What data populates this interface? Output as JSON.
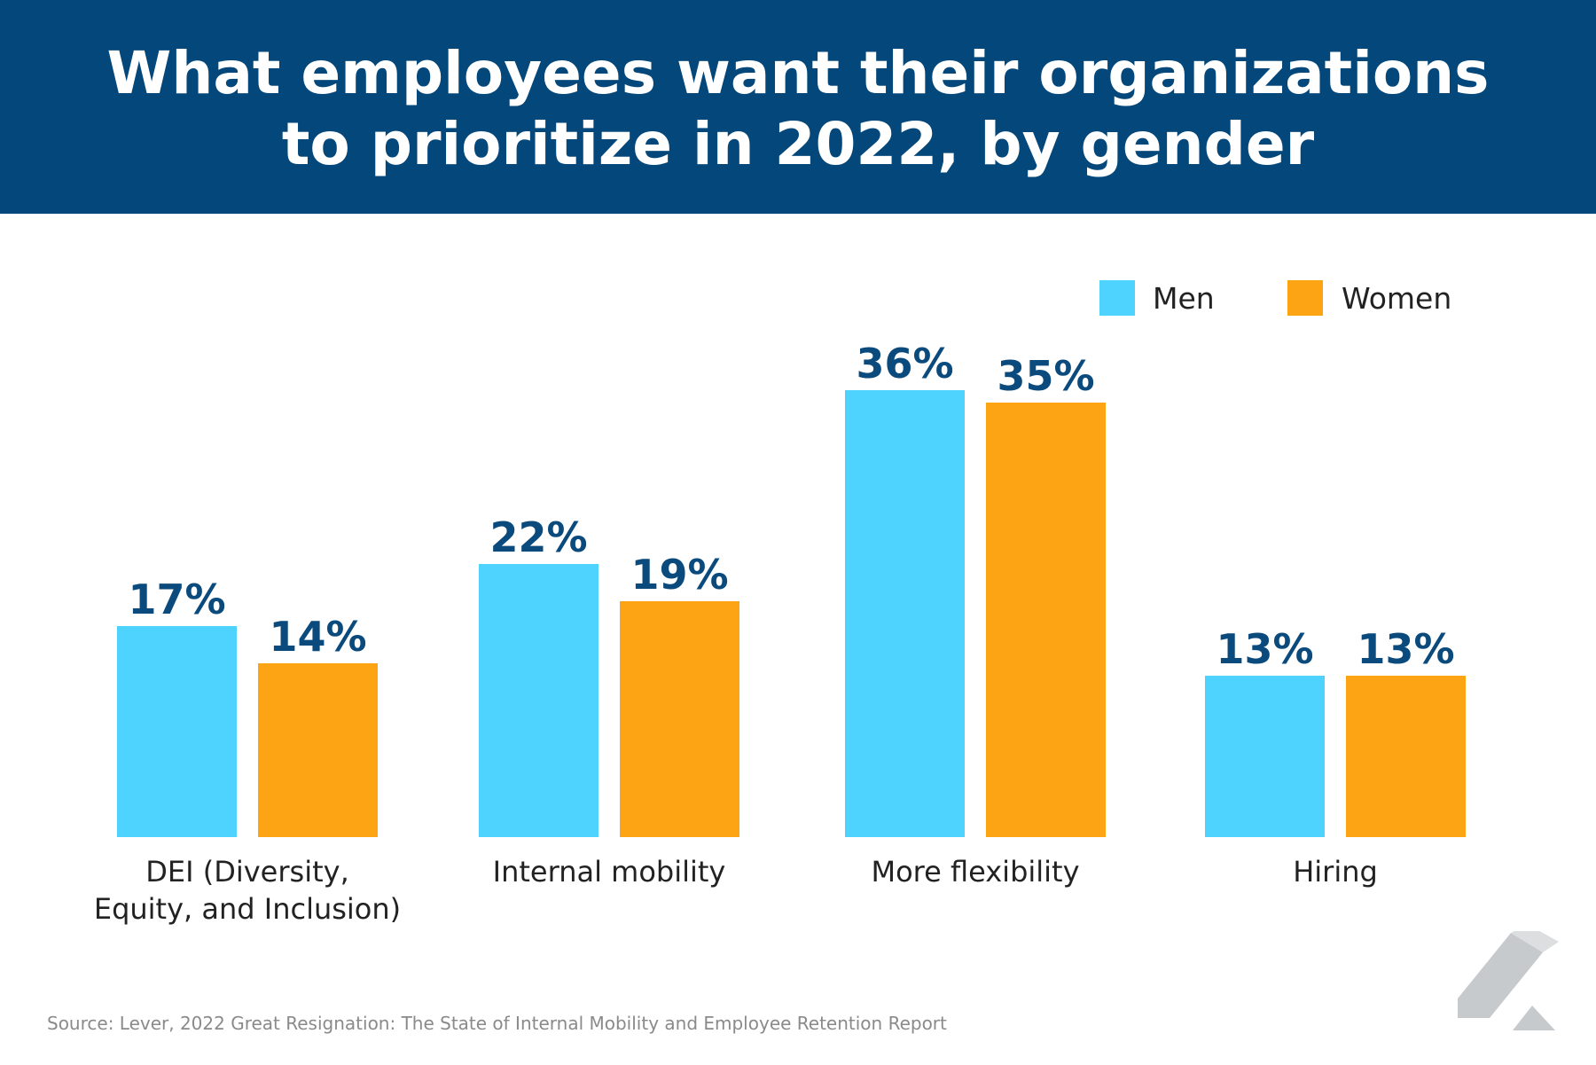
{
  "chart_data": {
    "type": "bar",
    "title_lines": [
      "What employees want their organizations",
      "to prioritize in 2022, by gender"
    ],
    "categories": [
      "DEI (Diversity,\nEquity, and Inclusion)",
      "Internal mobility",
      "More flexibility",
      "Hiring"
    ],
    "series": [
      {
        "name": "Men",
        "color": "#4dd3fd",
        "values": [
          17,
          22,
          36,
          13
        ],
        "labels": [
          "17%",
          "22%",
          "36%",
          "13%"
        ]
      },
      {
        "name": "Women",
        "color": "#fda414",
        "values": [
          14,
          19,
          35,
          13
        ],
        "labels": [
          "14%",
          "19%",
          "35%",
          "13%"
        ]
      }
    ],
    "ylim": [
      0,
      40
    ],
    "xlabel": "",
    "ylabel": "",
    "grid": false,
    "legend": "top-right"
  },
  "header": {
    "bg_color": "#04477a",
    "label_color": "#0b4a7c"
  },
  "legend": {
    "men_label": "Men",
    "women_label": "Women"
  },
  "source_text": "Source: Lever, 2022 Great Resignation: The State of Internal Mobility and Employee Retention Report",
  "logo_icon": "lever-logo-icon"
}
